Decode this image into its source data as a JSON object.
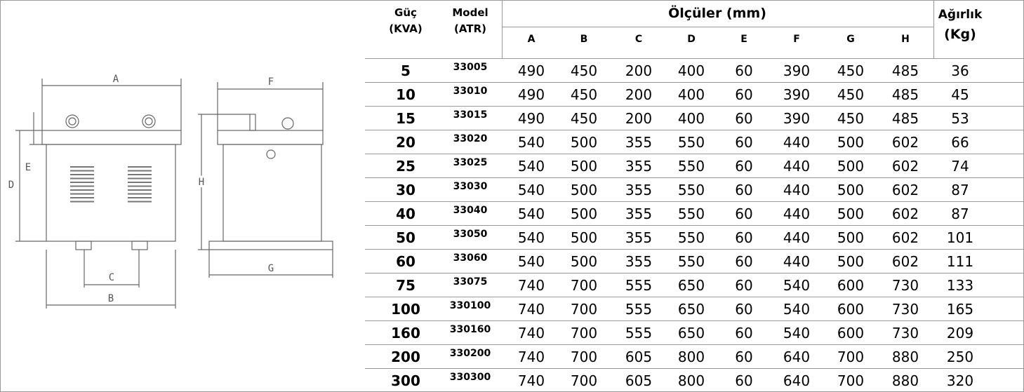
{
  "table": {
    "headers": {
      "power": "Güç",
      "power_unit": "(KVA)",
      "model": "Model",
      "model_unit": "(ATR)",
      "dimensions": "Ölçüler (mm)",
      "weight": "Ağırlık",
      "weight_unit": "(Kg)"
    },
    "dimension_columns": [
      "A",
      "B",
      "C",
      "D",
      "E",
      "F",
      "G",
      "H"
    ],
    "rows": [
      [
        5,
        33005,
        490,
        450,
        200,
        400,
        60,
        390,
        450,
        485,
        36
      ],
      [
        10,
        33010,
        490,
        450,
        200,
        400,
        60,
        390,
        450,
        485,
        45
      ],
      [
        15,
        33015,
        490,
        450,
        200,
        400,
        60,
        390,
        450,
        485,
        53
      ],
      [
        20,
        33020,
        540,
        500,
        355,
        550,
        60,
        440,
        500,
        602,
        66
      ],
      [
        25,
        33025,
        540,
        500,
        355,
        550,
        60,
        440,
        500,
        602,
        74
      ],
      [
        30,
        33030,
        540,
        500,
        355,
        550,
        60,
        440,
        500,
        602,
        87
      ],
      [
        40,
        33040,
        540,
        500,
        355,
        550,
        60,
        440,
        500,
        602,
        87
      ],
      [
        50,
        33050,
        540,
        500,
        355,
        550,
        60,
        440,
        500,
        602,
        101
      ],
      [
        60,
        33060,
        540,
        500,
        355,
        550,
        60,
        440,
        500,
        602,
        111
      ],
      [
        75,
        33075,
        740,
        700,
        555,
        650,
        60,
        540,
        600,
        730,
        133
      ],
      [
        100,
        330100,
        740,
        700,
        555,
        650,
        60,
        540,
        600,
        730,
        165
      ],
      [
        160,
        330160,
        740,
        700,
        555,
        650,
        60,
        540,
        600,
        730,
        209
      ],
      [
        200,
        330200,
        740,
        700,
        605,
        800,
        60,
        640,
        700,
        880,
        250
      ],
      [
        300,
        330300,
        740,
        700,
        605,
        800,
        60,
        640,
        700,
        880,
        320
      ]
    ]
  }
}
